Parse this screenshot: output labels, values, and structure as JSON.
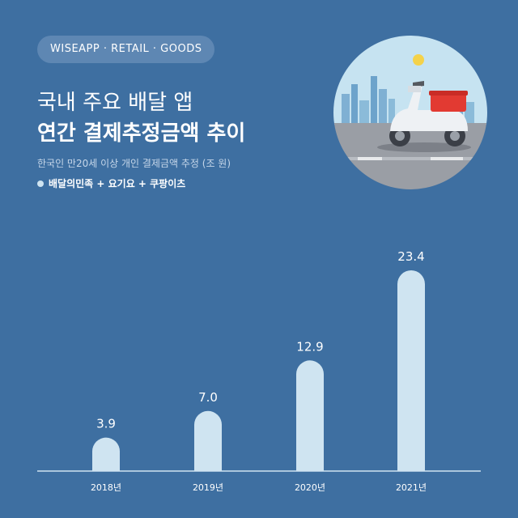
{
  "header": {
    "badge": "WISEAPP · RETAIL · GOODS",
    "title_line1": "국내 주요 배달 앱",
    "title_line2": "연간 결제추정금액 추이",
    "subtitle": "한국인 만20세 이상 개인 결제금액 추정 (조 원)",
    "legend": "배달의민족 + 요기요 + 쿠팡이츠"
  },
  "colors": {
    "background": "#3e6fa1",
    "bar": "#cfe4f1",
    "axis": "#cfe4f1",
    "label": "#ffffff"
  },
  "illustration": {
    "icon": "delivery-scooter-icon"
  },
  "chart_data": {
    "type": "bar",
    "title": "연간 결제추정금액 추이",
    "categories": [
      "2018년",
      "2019년",
      "2020년",
      "2021년"
    ],
    "values": [
      3.9,
      7.0,
      12.9,
      23.4
    ],
    "value_labels": [
      "3.9",
      "7.0",
      "12.9",
      "23.4"
    ],
    "ylim": [
      0,
      23.4
    ],
    "grid": false,
    "legend_position": "top-left",
    "series": [
      {
        "name": "배달의민족 + 요기요 + 쿠팡이츠",
        "values": [
          3.9,
          7.0,
          12.9,
          23.4
        ]
      }
    ]
  }
}
